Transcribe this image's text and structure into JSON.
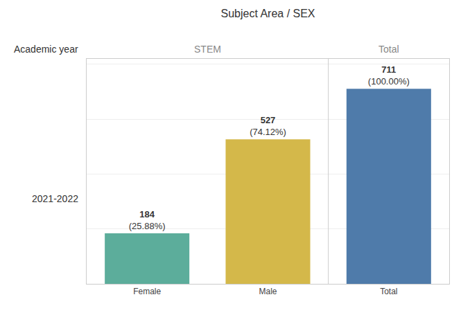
{
  "chart_data": {
    "type": "bar",
    "title": "Subject Area / SEX",
    "categories": [
      "Female",
      "Male",
      "Total"
    ],
    "values": [
      184,
      527,
      711
    ],
    "percentages": [
      "(25.88%)",
      "(74.12%)",
      "(100.00%)"
    ],
    "colors": [
      "#5cad9b",
      "#d4b84a",
      "#4f7baa"
    ],
    "ylim": [
      0,
      820
    ],
    "yticks": [
      200,
      400,
      600,
      800
    ],
    "grid": true,
    "data_labels": true,
    "tick_labels": "x",
    "column_headers": [
      "STEM",
      "Total"
    ],
    "row_label": "Academic year",
    "row_value": "2021-2022"
  }
}
